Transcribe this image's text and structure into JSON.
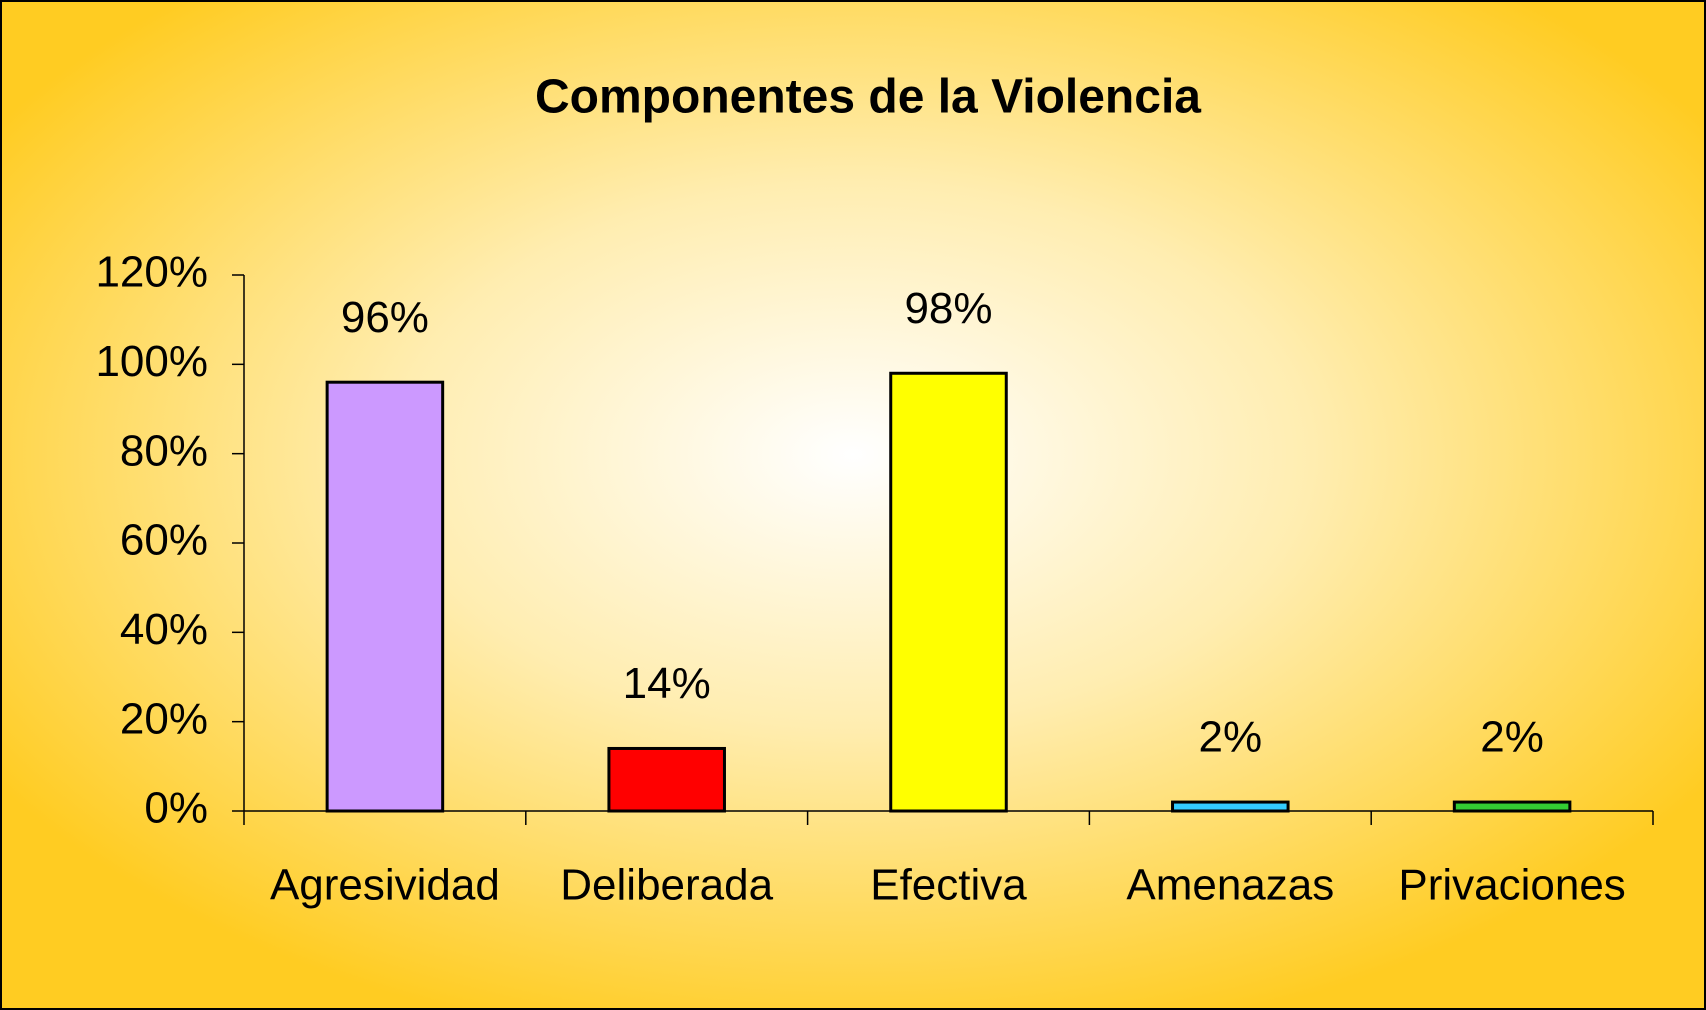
{
  "chart_data": {
    "type": "bar",
    "title": "Componentes de la Violencia",
    "categories": [
      "Agresividad",
      "Deliberada",
      "Efectiva",
      "Amenazas",
      "Privaciones"
    ],
    "values": [
      96,
      14,
      98,
      2,
      2
    ],
    "value_labels": [
      "96%",
      "14%",
      "98%",
      "2%",
      "2%"
    ],
    "colors": [
      "#cc99ff",
      "#ff0000",
      "#ffff00",
      "#33ccff",
      "#33cc33"
    ],
    "ylim": [
      0,
      120
    ],
    "yticks": [
      {
        "value": 0,
        "label": "0%"
      },
      {
        "value": 20,
        "label": "20%"
      },
      {
        "value": 40,
        "label": "40%"
      },
      {
        "value": 60,
        "label": "60%"
      },
      {
        "value": 80,
        "label": "80%"
      },
      {
        "value": 100,
        "label": "100%"
      },
      {
        "value": 120,
        "label": "120%"
      }
    ],
    "grid": false
  }
}
